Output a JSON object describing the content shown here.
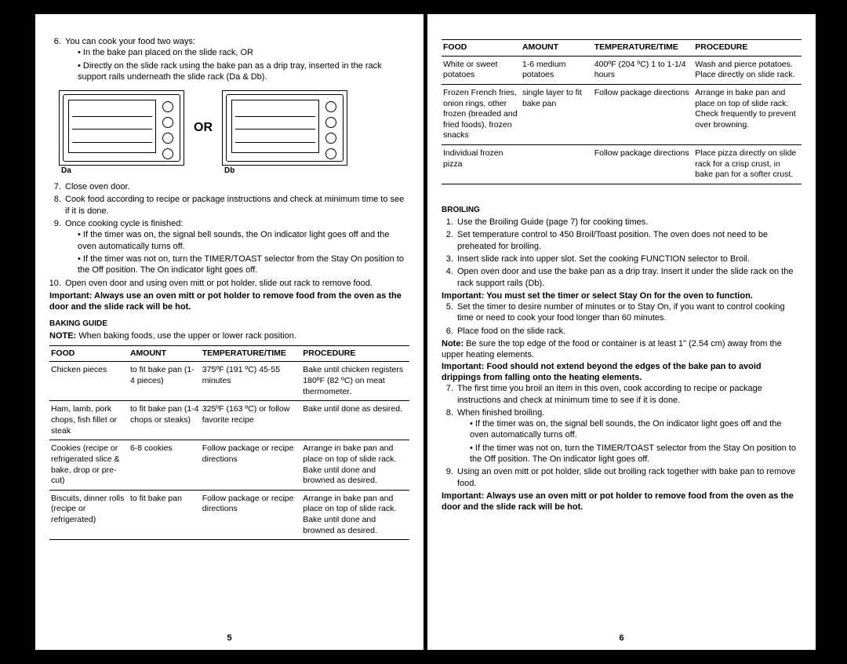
{
  "left": {
    "step6": "You can cook your food two ways:",
    "step6_bullets": [
      "In the bake pan placed on the slide rack, OR",
      "Directly on the slide rack using the bake pan as a drip tray, inserted in the rack support rails underneath the slide rack (Da & Db)."
    ],
    "fig_label_a": "Da",
    "fig_label_b": "Db",
    "or_text": "OR",
    "step7": "Close oven door.",
    "step8": "Cook food according to recipe or package instructions and check at minimum time to see if it is done.",
    "step9": "Once cooking cycle is finished:",
    "step9_bullets": [
      "If the timer was on, the signal bell sounds, the On indicator light goes off and the oven automatically turns off.",
      "If the timer was not on, turn the TIMER/TOAST selector from the Stay On position to the Off position. The On indicator light goes off."
    ],
    "step10": "Open oven door and using oven mitt or pot holder, slide out rack to remove food.",
    "important": "Important: Always use an oven mitt or pot holder to remove food from the oven as the door and the slide rack will be hot.",
    "baking_guide_hd": "BAKING GUIDE",
    "note_label": "NOTE:",
    "note_text": " When baking foods, use the upper or lower rack position.",
    "headers": {
      "food": "FOOD",
      "amount": "AMOUNT",
      "tt": "TEMPERATURE/TIME",
      "proc": "PROCEDURE"
    },
    "rows": [
      {
        "food": "Chicken pieces",
        "amount": "to fit bake pan (1- 4 pieces)",
        "tt": "375ºF (191 ºC) 45-55 minutes",
        "proc": "Bake until chicken registers 180ºF (82 ºC) on meat thermometer."
      },
      {
        "food": "Ham, lamb, pork chops, fish fillet or steak",
        "amount": "to fit bake pan (1-4 chops or steaks)",
        "tt": "325ºF (163 ºC) or follow favorite recipe",
        "proc": "Bake until done as desired."
      },
      {
        "food": "Cookies (recipe or refrigerated slice & bake, drop or pre-cut)",
        "amount": "6-8 cookies",
        "tt": "Follow package or recipe directions",
        "proc": "Arrange in bake pan and place on top of slide rack. Bake until done and browned as desired."
      },
      {
        "food": "Biscuits, dinner rolls (recipe or refrigerated)",
        "amount": "to fit bake pan",
        "tt": "Follow package or recipe directions",
        "proc": "Arrange in bake pan and place on top of slide rack. Bake until done and browned as desired."
      }
    ],
    "page_num": "5"
  },
  "right": {
    "headers": {
      "food": "FOOD",
      "amount": "AMOUNT",
      "tt": "TEMPERATURE/TIME",
      "proc": "PROCEDURE"
    },
    "rows": [
      {
        "food": "White or sweet potatoes",
        "amount": "1-6 medium potatoes",
        "tt": "400ºF (204 ºC) 1 to 1-1/4 hours",
        "proc": "Wash and pierce potatoes. Place directly on slide rack."
      },
      {
        "food": "Frozen French fries, onion rings, other frozen (breaded and fried foods), frozen snacks",
        "amount": "single layer to fit bake pan",
        "tt": "Follow package directions",
        "proc": "Arrange in bake pan and place on top of slide rack. Check frequently to prevent over browning."
      },
      {
        "food": "Individual frozen pizza",
        "amount": "",
        "tt": "Follow package directions",
        "proc": "Place pizza directly on slide rack for a crisp crust, in bake pan for a softer crust."
      }
    ],
    "broiling_hd": "BROILING",
    "b1": "Use the Broiling Guide (page 7) for cooking times.",
    "b2": "Set temperature control to 450 Broil/Toast position. The oven does not need to be preheated for broiling.",
    "b3": "Insert slide rack into upper slot. Set the cooking FUNCTION selector to Broil.",
    "b4": "Open oven door and use the bake pan as a drip tray. Insert it under the slide rack on the rack support rails (Db).",
    "imp1": "Important: You must set the timer or select Stay On for the oven to function.",
    "b5": "Set the timer to desire number of minutes or to Stay On, if you want to control cooking time or need to cook your food longer than 60 minutes.",
    "b6": "Place food on the slide rack.",
    "note2_label": "Note:",
    "note2": " Be sure the top edge of the food or container is at least 1\" (2.54 cm) away from the upper heating elements.",
    "imp2": "Important: Food should not extend beyond the edges of the bake pan to avoid drippings from falling onto the heating elements.",
    "b7": "The first time you broil an item in this oven, cook according to recipe or package instructions and check at minimum time to see if it is done.",
    "b8": "When finished broiling.",
    "b8_bullets": [
      "If the timer was on, the signal bell sounds, the On indicator light goes off and the oven automatically turns off.",
      "If the timer was not on, turn the TIMER/TOAST selector from the Stay On position to the Off position. The On indicator light goes off."
    ],
    "b9": "Using an oven mitt or pot holder, slide out broiling rack together with bake pan to remove food.",
    "imp3": "Important: Always use an oven mitt or pot holder to remove food from the oven as the door and the slide rack will be hot.",
    "page_num": "6"
  }
}
